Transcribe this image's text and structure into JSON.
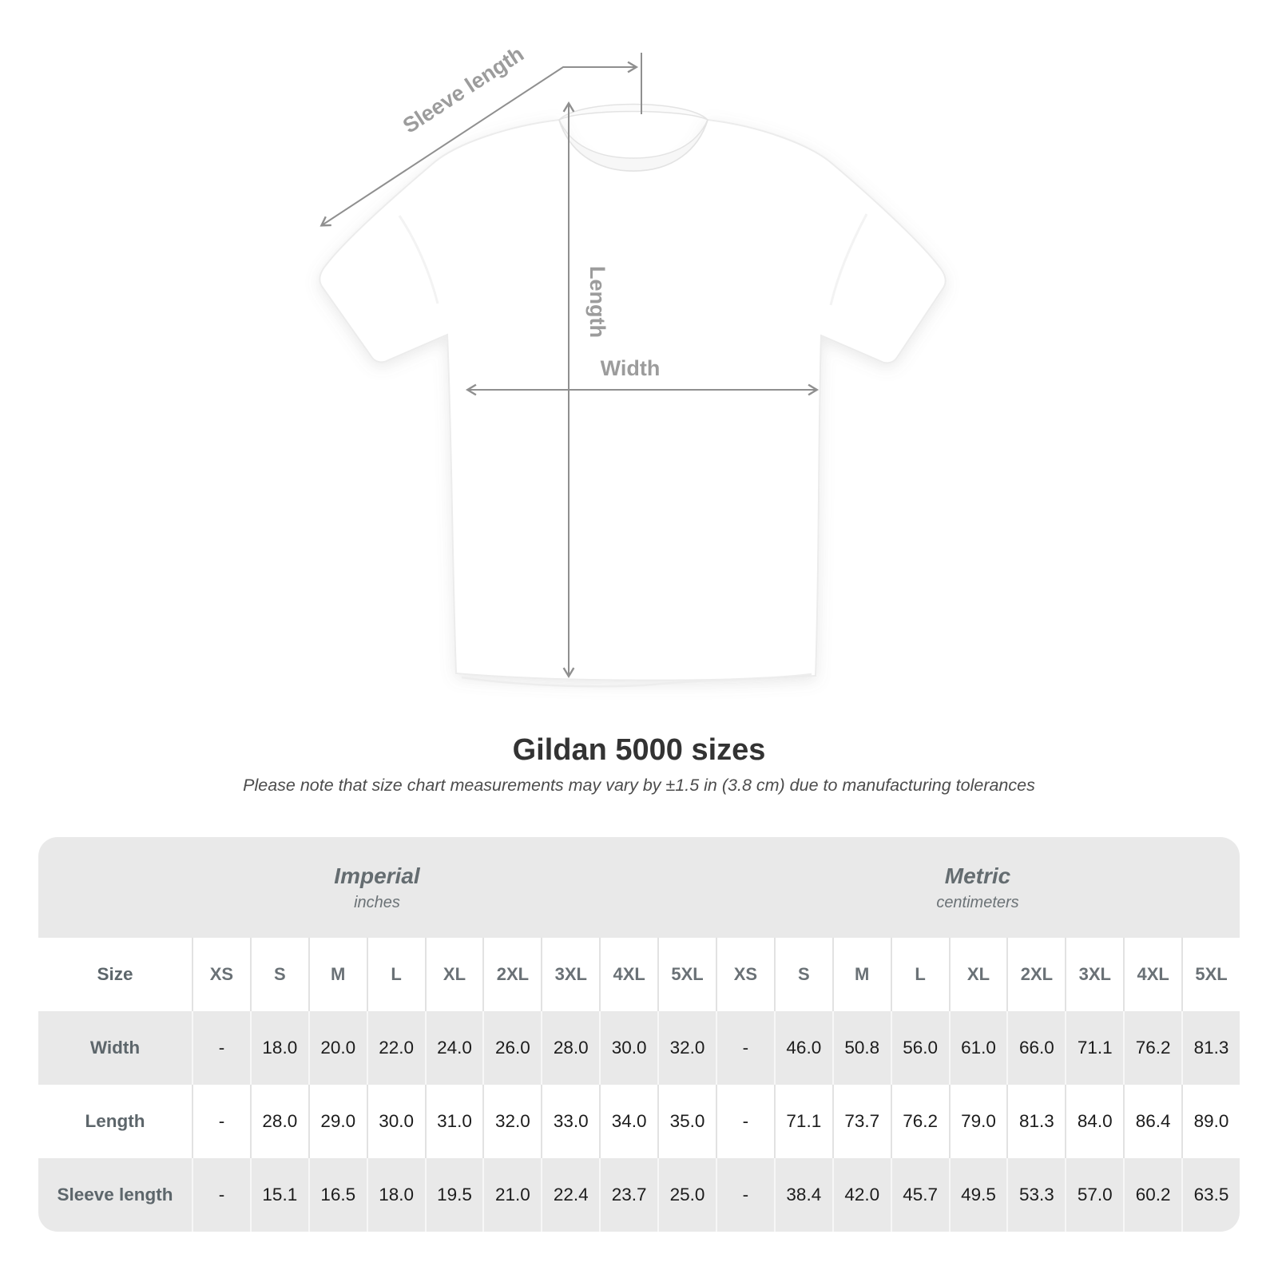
{
  "diagram": {
    "sleeve_length_label": "Sleeve length",
    "length_label": "Length",
    "width_label": "Width"
  },
  "title": "Gildan 5000 sizes",
  "subtitle": "Please note that size chart measurements may vary by ±1.5 in (3.8 cm) due to manufacturing tolerances",
  "chart_data": {
    "type": "table",
    "title": "Gildan 5000 sizes",
    "corner_label": "Size",
    "unit_groups": [
      {
        "name": "Imperial",
        "unit": "inches",
        "sizes": [
          "XS",
          "S",
          "M",
          "L",
          "XL",
          "2XL",
          "3XL",
          "4XL",
          "5XL"
        ]
      },
      {
        "name": "Metric",
        "unit": "centimeters",
        "sizes": [
          "XS",
          "S",
          "M",
          "L",
          "XL",
          "2XL",
          "3XL",
          "4XL",
          "5XL"
        ]
      }
    ],
    "rows": [
      {
        "label": "Width",
        "imperial": [
          "-",
          "18.0",
          "20.0",
          "22.0",
          "24.0",
          "26.0",
          "28.0",
          "30.0",
          "32.0"
        ],
        "metric": [
          "-",
          "46.0",
          "50.8",
          "56.0",
          "61.0",
          "66.0",
          "71.1",
          "76.2",
          "81.3"
        ]
      },
      {
        "label": "Length",
        "imperial": [
          "-",
          "28.0",
          "29.0",
          "30.0",
          "31.0",
          "32.0",
          "33.0",
          "34.0",
          "35.0"
        ],
        "metric": [
          "-",
          "71.1",
          "73.7",
          "76.2",
          "79.0",
          "81.3",
          "84.0",
          "86.4",
          "89.0"
        ]
      },
      {
        "label": "Sleeve length",
        "imperial": [
          "-",
          "15.1",
          "16.5",
          "18.0",
          "19.5",
          "21.0",
          "22.4",
          "23.7",
          "25.0"
        ],
        "metric": [
          "-",
          "38.4",
          "42.0",
          "45.7",
          "49.5",
          "53.3",
          "57.0",
          "60.2",
          "63.5"
        ]
      }
    ]
  },
  "colors": {
    "stripe_gray": "#e9e9e9",
    "row_label_text": "#5d666b",
    "value_text": "#1c1c1c",
    "measure_line": "#8f8f8f",
    "measure_text": "#9c9c9c"
  }
}
